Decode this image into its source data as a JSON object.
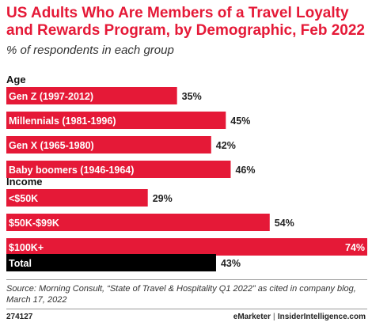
{
  "chart_data": {
    "type": "bar",
    "orientation": "horizontal",
    "title": "US Adults Who Are Members of a Travel Loyalty and Rewards Program, by Demographic, Feb 2022",
    "subtitle": "% of respondents in each group",
    "unit": "%",
    "xlim": [
      0,
      74
    ],
    "grid": false,
    "colors": {
      "bar": "#e51937",
      "total": "#000000",
      "text_on_bar": "#ffffff"
    },
    "groups": [
      {
        "label": "Age",
        "categories": [
          "Gen Z (1997-2012)",
          "Millennials (1981-1996)",
          "Gen X (1965-1980)",
          "Baby boomers (1946-1964)"
        ],
        "values": [
          35,
          45,
          42,
          46
        ],
        "value_labels": [
          "35%",
          "45%",
          "42%",
          "46%"
        ]
      },
      {
        "label": "Income",
        "categories": [
          "<$50K",
          "$50K-$99K",
          "$100K+"
        ],
        "values": [
          29,
          54,
          74
        ],
        "value_labels": [
          "29%",
          "54%",
          "74%"
        ]
      },
      {
        "label": "",
        "categories": [
          "Total"
        ],
        "values": [
          43
        ],
        "value_labels": [
          "43%"
        ],
        "highlight": true
      }
    ]
  },
  "source": "Source: Morning Consult, “State of Travel & Hospitality Q1 2022” as cited in company blog, March 17, 2022",
  "footer": {
    "chart_id": "274127",
    "brand_left": "eMarketer",
    "separator": "|",
    "brand_right": "InsiderIntelligence.com"
  }
}
